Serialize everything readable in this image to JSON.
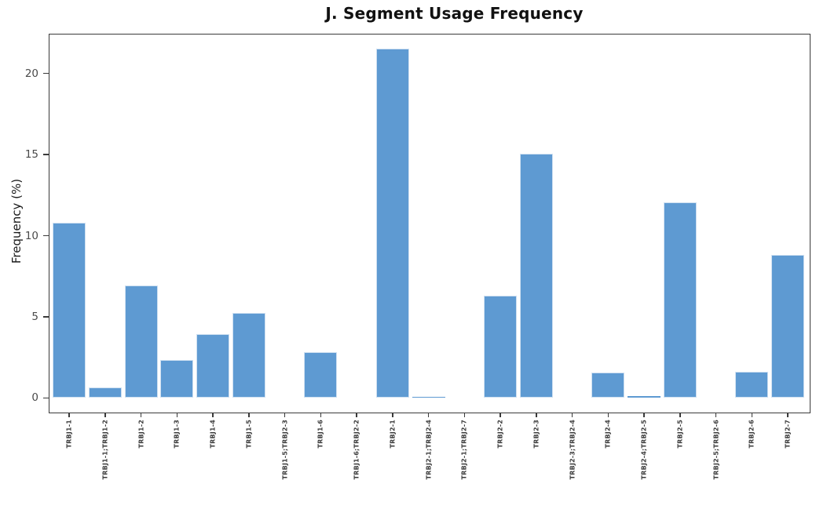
{
  "figure": {
    "title": "J. Segment Usage Frequency",
    "ylabel": "Frequency (%)"
  },
  "chart_data": {
    "type": "bar",
    "title": "J. Segment Usage Frequency",
    "xlabel": "",
    "ylabel": "Frequency (%)",
    "categories": [
      "TRBJ1-1",
      "TRBJ1-1;TRBJ1-2",
      "TRBJ1-2",
      "TRBJ1-3",
      "TRBJ1-4",
      "TRBJ1-5",
      "TRBJ1-5;TRBJ2-3",
      "TRBJ1-6",
      "TRBJ1-6;TRBJ2-2",
      "TRBJ2-1",
      "TRBJ2-1;TRBJ2-4",
      "TRBJ2-1;TRBJ2-7",
      "TRBJ2-2",
      "TRBJ2-3",
      "TRBJ2-3;TRBJ2-4",
      "TRBJ2-4",
      "TRBJ2-4;TRBJ2-5",
      "TRBJ2-5",
      "TRBJ2-5;TRBJ2-6",
      "TRBJ2-6",
      "TRBJ2-7"
    ],
    "values": [
      10.8,
      0.65,
      6.95,
      2.35,
      3.95,
      5.25,
      0,
      2.8,
      0,
      21.55,
      0.05,
      0,
      6.3,
      15.05,
      0,
      1.55,
      0.1,
      12.05,
      0,
      1.6,
      8.8
    ],
    "yticks": [
      0,
      5,
      10,
      15,
      20
    ],
    "ytick_labels": [
      "0",
      "5",
      "10",
      "15",
      "20"
    ],
    "ylim": [
      -0.9,
      22.4
    ],
    "grid": false,
    "legend": null,
    "colors": {
      "bar_fill": "#5e9ad2",
      "bar_edge": "#cfe0f1",
      "spine": "#3a3a3a",
      "tick_label": "#4a4a4a",
      "title_text": "#111111"
    }
  }
}
